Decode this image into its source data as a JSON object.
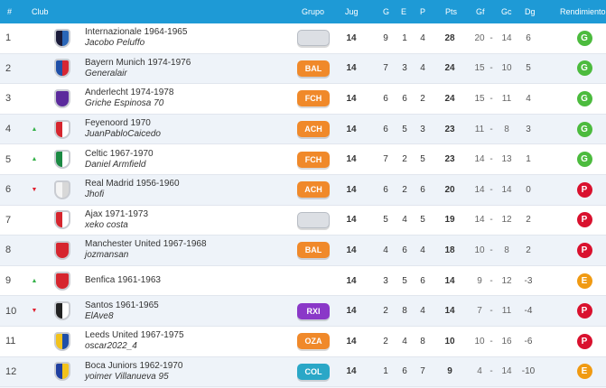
{
  "header": {
    "pos": "#",
    "club": "Club",
    "grupo": "Grupo",
    "jug": "Jug",
    "g": "G",
    "e": "E",
    "p": "P",
    "pts": "Pts",
    "gf": "Gf",
    "gc": "Gc",
    "dg": "Dg",
    "rendimiento": "Rendimiento"
  },
  "colors": {
    "header_bg": "#1e9ad6",
    "rend_G": "#4cbb3e",
    "rend_P": "#d9112e",
    "rend_E": "#f09a12",
    "badge_orange": "#f0892a",
    "badge_purple": "#8a38c8",
    "badge_teal": "#2aa7c7"
  },
  "rows": [
    {
      "pos": "1",
      "trend": "",
      "trend_icon": "",
      "club": "Internazionale 1964-1965",
      "manager": "Jacobo Peluffo",
      "group": "",
      "group_color": "empty",
      "crest_icon": "inter-crest-icon",
      "crest_colors": [
        "#1b1b3a",
        "#2a66b8"
      ],
      "jug": "14",
      "g": "9",
      "e": "1",
      "p": "4",
      "pts": "28",
      "gf": "20",
      "dash": "-",
      "gc": "14",
      "dg": "6",
      "rend": "G"
    },
    {
      "pos": "2",
      "trend": "",
      "trend_icon": "",
      "club": "Bayern Munich 1974-1976",
      "manager": "Generalair",
      "group": "BAL",
      "group_color": "orange",
      "crest_icon": "bayern-crest-icon",
      "crest_colors": [
        "#1f4fa8",
        "#d62633"
      ],
      "jug": "14",
      "g": "7",
      "e": "3",
      "p": "4",
      "pts": "24",
      "gf": "15",
      "dash": "-",
      "gc": "10",
      "dg": "5",
      "rend": "G"
    },
    {
      "pos": "3",
      "trend": "",
      "trend_icon": "",
      "club": "Anderlecht 1974-1978",
      "manager": "Griche Espinosa 70",
      "group": "FCH",
      "group_color": "orange",
      "crest_icon": "anderlecht-crest-icon",
      "crest_colors": [
        "#5b2a9c",
        "#5b2a9c"
      ],
      "jug": "14",
      "g": "6",
      "e": "6",
      "p": "2",
      "pts": "24",
      "gf": "15",
      "dash": "-",
      "gc": "11",
      "dg": "4",
      "rend": "G"
    },
    {
      "pos": "4",
      "trend": "up",
      "trend_icon": "▲",
      "club": "Feyenoord 1970",
      "manager": "JuanPabloCaicedo",
      "group": "ACH",
      "group_color": "orange",
      "crest_icon": "feyenoord-crest-icon",
      "crest_colors": [
        "#d6252e",
        "#ffffff"
      ],
      "jug": "14",
      "g": "6",
      "e": "5",
      "p": "3",
      "pts": "23",
      "gf": "11",
      "dash": "-",
      "gc": "8",
      "dg": "3",
      "rend": "G"
    },
    {
      "pos": "5",
      "trend": "up",
      "trend_icon": "▲",
      "club": "Celtic 1967-1970",
      "manager": "Daniel Armfield",
      "group": "FCH",
      "group_color": "orange",
      "crest_icon": "celtic-crest-icon",
      "crest_colors": [
        "#1b8a43",
        "#ffffff"
      ],
      "jug": "14",
      "g": "7",
      "e": "2",
      "p": "5",
      "pts": "23",
      "gf": "14",
      "dash": "-",
      "gc": "13",
      "dg": "1",
      "rend": "G"
    },
    {
      "pos": "6",
      "trend": "down",
      "trend_icon": "▼",
      "club": "Real Madrid 1956-1960",
      "manager": "Jhofi",
      "group": "ACH",
      "group_color": "orange",
      "crest_icon": "real-madrid-crest-icon",
      "crest_colors": [
        "#f4f4f4",
        "#d8d8d8"
      ],
      "jug": "14",
      "g": "6",
      "e": "2",
      "p": "6",
      "pts": "20",
      "gf": "14",
      "dash": "-",
      "gc": "14",
      "dg": "0",
      "rend": "P"
    },
    {
      "pos": "7",
      "trend": "",
      "trend_icon": "",
      "club": "Ajax 1971-1973",
      "manager": "xeko costa",
      "group": "",
      "group_color": "empty",
      "crest_icon": "ajax-crest-icon",
      "crest_colors": [
        "#d6252e",
        "#ffffff"
      ],
      "jug": "14",
      "g": "5",
      "e": "4",
      "p": "5",
      "pts": "19",
      "gf": "14",
      "dash": "-",
      "gc": "12",
      "dg": "2",
      "rend": "P"
    },
    {
      "pos": "8",
      "trend": "",
      "trend_icon": "",
      "club": "Manchester United 1967-1968",
      "manager": "jozmansan",
      "group": "BAL",
      "group_color": "orange",
      "crest_icon": "man-united-crest-icon",
      "crest_colors": [
        "#d6252e",
        "#d6252e"
      ],
      "jug": "14",
      "g": "4",
      "e": "6",
      "p": "4",
      "pts": "18",
      "gf": "10",
      "dash": "-",
      "gc": "8",
      "dg": "2",
      "rend": "P"
    },
    {
      "pos": "9",
      "trend": "up",
      "trend_icon": "▲",
      "club": "Benfica 1961-1963",
      "manager": "",
      "group": "",
      "group_color": "none",
      "crest_icon": "benfica-crest-icon",
      "crest_colors": [
        "#d6252e",
        "#d6252e"
      ],
      "jug": "14",
      "g": "3",
      "e": "5",
      "p": "6",
      "pts": "14",
      "gf": "9",
      "dash": "-",
      "gc": "12",
      "dg": "-3",
      "rend": "E"
    },
    {
      "pos": "10",
      "trend": "down",
      "trend_icon": "▼",
      "club": "Santos 1961-1965",
      "manager": "ElAve8",
      "group": "RXI",
      "group_color": "purple",
      "crest_icon": "santos-crest-icon",
      "crest_colors": [
        "#222222",
        "#ffffff"
      ],
      "jug": "14",
      "g": "2",
      "e": "8",
      "p": "4",
      "pts": "14",
      "gf": "7",
      "dash": "-",
      "gc": "11",
      "dg": "-4",
      "rend": "P"
    },
    {
      "pos": "11",
      "trend": "",
      "trend_icon": "",
      "club": "Leeds United 1967-1975",
      "manager": "oscar2022_4",
      "group": "OZA",
      "group_color": "orange",
      "crest_icon": "leeds-crest-icon",
      "crest_colors": [
        "#f2c21b",
        "#1f4fa8"
      ],
      "jug": "14",
      "g": "2",
      "e": "4",
      "p": "8",
      "pts": "10",
      "gf": "10",
      "dash": "-",
      "gc": "16",
      "dg": "-6",
      "rend": "P"
    },
    {
      "pos": "12",
      "trend": "",
      "trend_icon": "",
      "club": "Boca Juniors 1962-1970",
      "manager": "yoimer Villanueva 95",
      "group": "COL",
      "group_color": "teal",
      "crest_icon": "boca-crest-icon",
      "crest_colors": [
        "#1f3fa0",
        "#f2c21b"
      ],
      "jug": "14",
      "g": "1",
      "e": "6",
      "p": "7",
      "pts": "9",
      "gf": "4",
      "dash": "-",
      "gc": "14",
      "dg": "-10",
      "rend": "E"
    }
  ]
}
